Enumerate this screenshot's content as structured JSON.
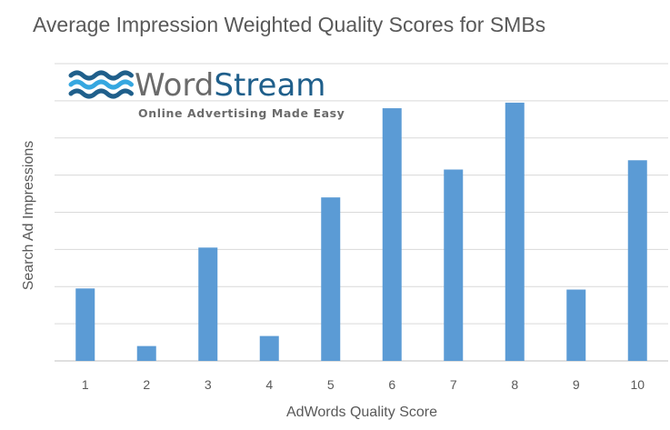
{
  "chart_data": {
    "type": "bar",
    "title": "Average Impression Weighted Quality Scores for SMBs",
    "xlabel": "AdWords Quality Score",
    "ylabel": "Search Ad Impressions",
    "categories": [
      "1",
      "2",
      "3",
      "4",
      "5",
      "6",
      "7",
      "8",
      "9",
      "10"
    ],
    "values": [
      1.95,
      0.4,
      3.05,
      0.67,
      4.4,
      6.8,
      5.15,
      6.95,
      1.92,
      5.4
    ],
    "ylim": [
      0,
      8
    ],
    "y_tick_labels_shown": false,
    "grid": true,
    "bar_color": "#5B9BD5"
  },
  "logo": {
    "word_part1": "Word",
    "word_part2": "Stream",
    "tagline": "Online Advertising Made Easy",
    "color_dark": "#1f5f8b",
    "color_light": "#35a7e0",
    "color_grey": "#6b6b6b"
  }
}
